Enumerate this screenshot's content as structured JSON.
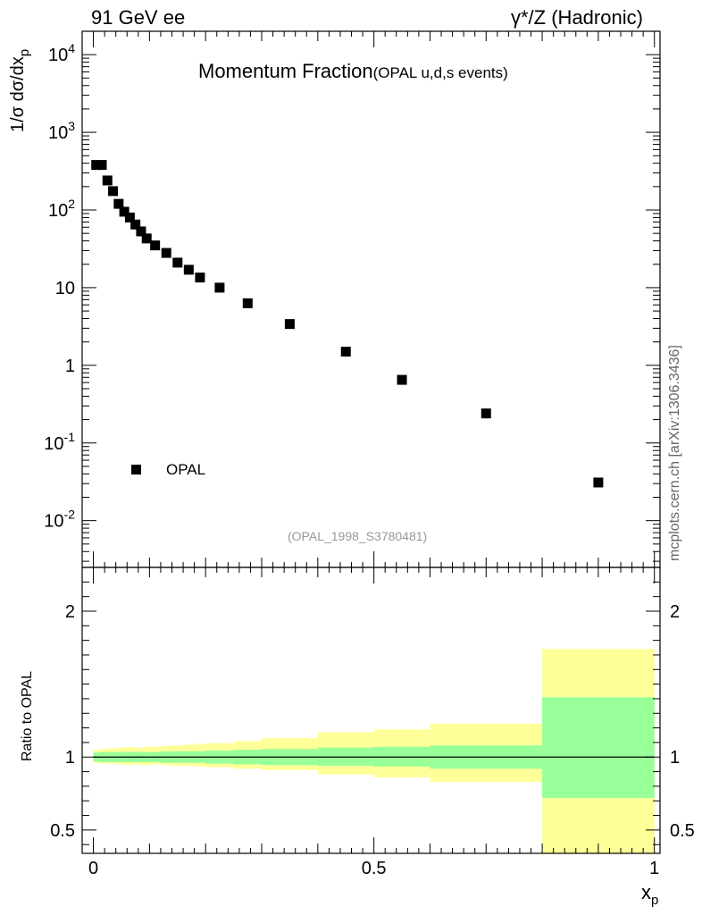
{
  "header": {
    "left_text": "91 GeV ee",
    "right_text": "γ*/Z (Hadronic)",
    "side_text": "mcplots.cern.ch [arXiv:1306.3436]"
  },
  "chart_data": [
    {
      "type": "scatter",
      "title": "Momentum Fraction",
      "subtitle": "(OPAL u,d,s events)",
      "ylabel": "1/σ dσ/dx",
      "ylabel_sub": "p",
      "yscale": "log",
      "ylim": [
        0.0025,
        20000
      ],
      "xlim": [
        -0.02,
        1.01
      ],
      "yticks": [
        {
          "value": 0.01,
          "base": "10",
          "exp": "-2"
        },
        {
          "value": 0.1,
          "base": "10",
          "exp": "-1"
        },
        {
          "value": 1,
          "base": "1",
          "exp": ""
        },
        {
          "value": 10,
          "base": "10",
          "exp": ""
        },
        {
          "value": 100,
          "base": "10",
          "exp": "2"
        },
        {
          "value": 1000,
          "base": "10",
          "exp": "3"
        },
        {
          "value": 10000,
          "base": "10",
          "exp": "4"
        }
      ],
      "legend": {
        "entry": "OPAL",
        "placement": "bottom-left"
      },
      "annotation": "(OPAL_1998_S3780481)",
      "series": [
        {
          "name": "OPAL",
          "x": [
            0.005,
            0.015,
            0.025,
            0.035,
            0.045,
            0.055,
            0.065,
            0.075,
            0.085,
            0.095,
            0.11,
            0.13,
            0.15,
            0.17,
            0.19,
            0.225,
            0.275,
            0.35,
            0.45,
            0.55,
            0.7,
            0.9
          ],
          "y": [
            380,
            380,
            240,
            175,
            120,
            95,
            80,
            65,
            53,
            43,
            35,
            28,
            21,
            17,
            13.5,
            10,
            6.3,
            3.4,
            1.5,
            0.65,
            0.24,
            0.031
          ]
        }
      ]
    },
    {
      "type": "area",
      "ylabel": "Ratio to OPAL",
      "xlabel": "x",
      "xlabel_sub": "p",
      "ylim": [
        0.34,
        2.3
      ],
      "xlim": [
        -0.02,
        1.01
      ],
      "yticks": [
        0.5,
        1,
        2
      ],
      "ytick_labels": [
        "0.5",
        "1",
        "2"
      ],
      "xticks": [
        0,
        0.5,
        1
      ],
      "xtick_labels": [
        "0",
        "0.5",
        "1"
      ],
      "bins": [
        0,
        0.01,
        0.02,
        0.03,
        0.04,
        0.05,
        0.06,
        0.07,
        0.08,
        0.09,
        0.1,
        0.12,
        0.14,
        0.16,
        0.18,
        0.2,
        0.25,
        0.3,
        0.4,
        0.5,
        0.6,
        0.8,
        1.0
      ],
      "inner_band": {
        "color": "#99ff99",
        "lo": [
          0.97,
          0.965,
          0.965,
          0.965,
          0.965,
          0.965,
          0.965,
          0.965,
          0.965,
          0.965,
          0.965,
          0.96,
          0.96,
          0.96,
          0.96,
          0.955,
          0.95,
          0.945,
          0.94,
          0.935,
          0.92,
          0.72
        ],
        "hi": [
          1.03,
          1.035,
          1.035,
          1.035,
          1.035,
          1.035,
          1.035,
          1.035,
          1.035,
          1.035,
          1.035,
          1.04,
          1.04,
          1.04,
          1.04,
          1.045,
          1.05,
          1.055,
          1.065,
          1.07,
          1.08,
          1.41
        ]
      },
      "outer_band": {
        "color": "#ffff99",
        "lo": [
          0.96,
          0.955,
          0.955,
          0.955,
          0.95,
          0.95,
          0.945,
          0.95,
          0.945,
          0.945,
          0.95,
          0.945,
          0.94,
          0.94,
          0.935,
          0.93,
          0.92,
          0.91,
          0.88,
          0.86,
          0.83,
          0.34
        ],
        "hi": [
          1.05,
          1.055,
          1.06,
          1.06,
          1.065,
          1.065,
          1.07,
          1.065,
          1.065,
          1.07,
          1.07,
          1.075,
          1.08,
          1.085,
          1.09,
          1.095,
          1.11,
          1.13,
          1.17,
          1.19,
          1.23,
          1.74
        ]
      },
      "reference_line": 1
    }
  ]
}
